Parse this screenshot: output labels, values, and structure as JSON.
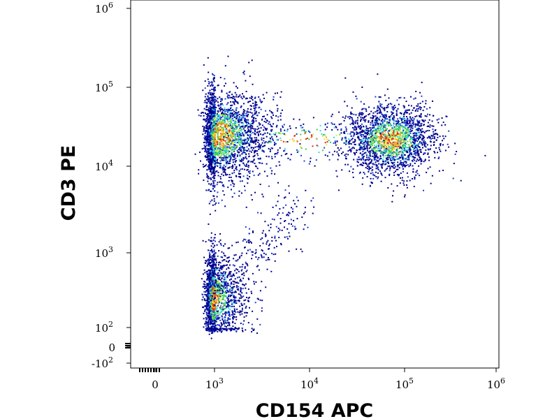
{
  "chart_data": {
    "type": "scatter",
    "style": "flow-cytometry density dot plot",
    "xlabel": "CD154 APC",
    "ylabel": "CD3 PE",
    "x_scale": "biexponential (log above ~10^2.5)",
    "y_scale": "biexponential (log above ~10^2)",
    "xlim": [
      -100,
      1000000
    ],
    "ylim": [
      -100,
      1000000
    ],
    "x_ticks": [
      {
        "value": 0,
        "base": "0",
        "exp": ""
      },
      {
        "value": 1000,
        "base": "10",
        "exp": "3"
      },
      {
        "value": 10000,
        "base": "10",
        "exp": "4"
      },
      {
        "value": 100000,
        "base": "10",
        "exp": "5"
      },
      {
        "value": 1000000,
        "base": "10",
        "exp": "6"
      }
    ],
    "y_ticks": [
      {
        "value": -100,
        "base": "-10",
        "exp": "2"
      },
      {
        "value": 0,
        "base": "0",
        "exp": ""
      },
      {
        "value": 100,
        "base": "10",
        "exp": "2"
      },
      {
        "value": 1000,
        "base": "10",
        "exp": "3"
      },
      {
        "value": 10000,
        "base": "10",
        "exp": "4"
      },
      {
        "value": 100000,
        "base": "10",
        "exp": "5"
      },
      {
        "value": 1000000,
        "base": "10",
        "exp": "6"
      }
    ],
    "populations": [
      {
        "description": "CD3+ CD154-",
        "x_center": 1100,
        "y_center": 25000,
        "x_spread_decades": 0.26,
        "y_spread_decades": 0.28,
        "events": 2600
      },
      {
        "description": "CD3+ CD154+",
        "x_center": 70000,
        "y_center": 22000,
        "x_spread_decades": 0.24,
        "y_spread_decades": 0.22,
        "events": 2000
      },
      {
        "description": "CD3- CD154-",
        "x_center": 850,
        "y_center": 250,
        "x_spread_decades": 0.2,
        "y_spread_decades": 0.3,
        "events": 1900
      },
      {
        "description": "bridge",
        "x_from": 800,
        "x_to": 8000,
        "y_from": 250,
        "y_to": 4000,
        "events": 250
      },
      {
        "description": "sparse middle",
        "x_center": 9000,
        "y_center": 22000,
        "x_spread_decades": 0.45,
        "y_spread_decades": 0.15,
        "events": 220
      }
    ],
    "density_colors": [
      "#00008b",
      "#1a3fd6",
      "#2fd7e0",
      "#3cd24a",
      "#e8e83a",
      "#f2a020",
      "#e02818"
    ],
    "grid": false,
    "legend": "none"
  }
}
